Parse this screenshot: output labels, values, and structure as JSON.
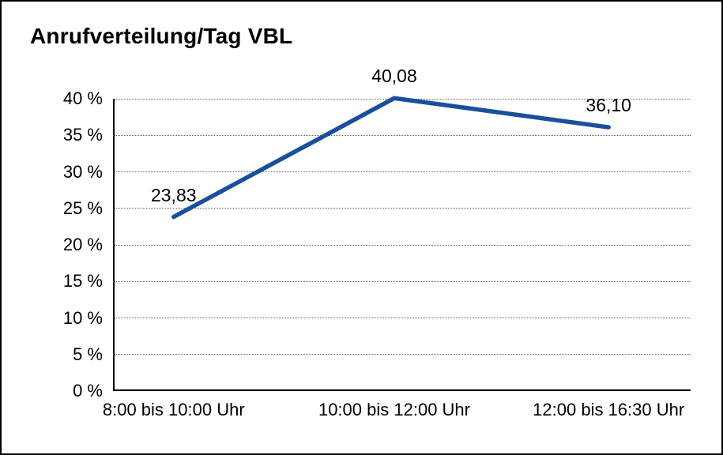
{
  "chart_data": {
    "type": "line",
    "title": "Anrufverteilung/Tag VBL",
    "categories": [
      "8:00 bis 10:00 Uhr",
      "10:00 bis 12:00 Uhr",
      "12:00 bis 16:30 Uhr"
    ],
    "series": [
      {
        "values": [
          23.83,
          40.08,
          36.1
        ],
        "point_labels": [
          "23,83",
          "40,08",
          "36,10"
        ]
      }
    ],
    "ylim": [
      0,
      40
    ],
    "ytick_step": 5,
    "ytick_labels": [
      "0 %",
      "5 %",
      "10 %",
      "15 %",
      "20 %",
      "25 %",
      "30 %",
      "35 %",
      "40 %"
    ],
    "xlabel": "",
    "ylabel": "",
    "legend": "none",
    "grid": "horizontal-dotted",
    "line_color": "#1A4F9C",
    "axis_color": "#000000",
    "background_color": "#FFFFFF"
  }
}
